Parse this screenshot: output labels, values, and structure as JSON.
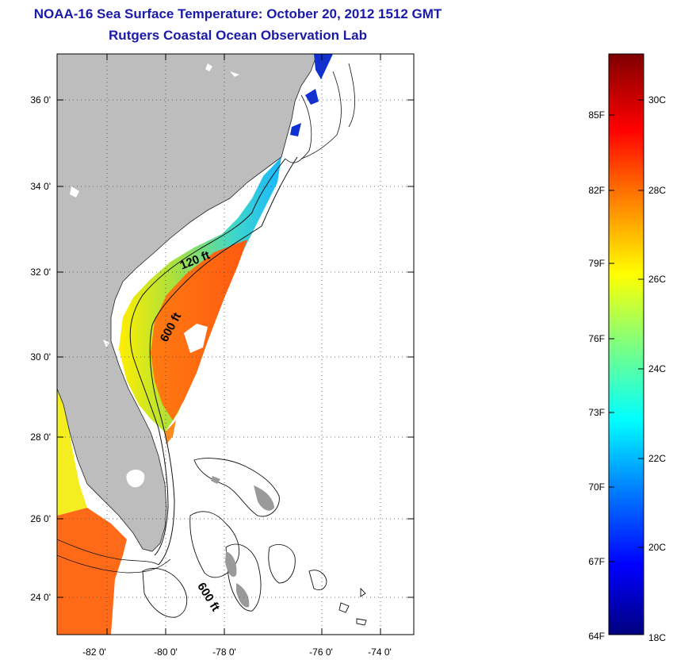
{
  "titles": {
    "main": "NOAA-16 Sea Surface Temperature:  October 20, 2012 1512 GMT",
    "sub": "Rutgers Coastal Ocean Observation Lab"
  },
  "axes": {
    "lat_ticks": [
      "36 0'",
      "34 0'",
      "32 0'",
      "30 0'",
      "28 0'",
      "26 0'",
      "24 0'"
    ],
    "lon_ticks": [
      "-82 0'",
      "-80 0'",
      "-78 0'",
      "-76 0'",
      "-74 0'"
    ]
  },
  "contours": {
    "shelf_label": "120 ft",
    "slope_label": "600 ft",
    "bahamas_label": "600 ft"
  },
  "colorbar": {
    "fahrenheit": [
      "85F",
      "82F",
      "79F",
      "76F",
      "73F",
      "70F",
      "67F",
      "64F"
    ],
    "celsius": [
      "30C",
      "28C",
      "26C",
      "24C",
      "22C",
      "20C",
      "18C"
    ],
    "colors": [
      "#00007f",
      "#0000ff",
      "#007fff",
      "#00ffff",
      "#7fff7f",
      "#ffff00",
      "#ff7f00",
      "#ff0000",
      "#7f0000"
    ]
  },
  "colors": {
    "land": "#bdbdbd",
    "title": "#1a1aa8"
  }
}
